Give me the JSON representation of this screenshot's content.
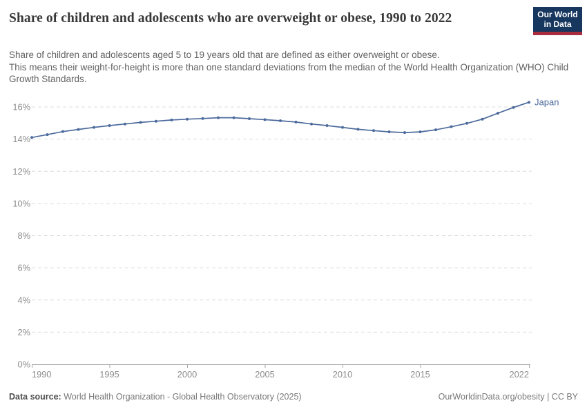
{
  "header": {
    "title": "Share of children and adolescents who are overweight or obese, 1990 to 2022",
    "subtitle_sentence1": "Share of children and adolescents aged 5 to 19 years old that are defined as either overweight or obese.",
    "subtitle_sentence2": "This means their weight-for-height is more than one standard deviations from the median of the World Health Organization (WHO) Child Growth Standards.",
    "logo": {
      "line1": "Our World",
      "line2": "in Data",
      "bg_color": "#18375f",
      "stripe_color": "#a92c3f"
    }
  },
  "chart_data": {
    "type": "line",
    "title": "Share of children and adolescents who are overweight or obese, 1990 to 2022",
    "x": [
      1990,
      1991,
      1992,
      1993,
      1994,
      1995,
      1996,
      1997,
      1998,
      1999,
      2000,
      2001,
      2002,
      2003,
      2004,
      2005,
      2006,
      2007,
      2008,
      2009,
      2010,
      2011,
      2012,
      2013,
      2014,
      2015,
      2016,
      2017,
      2018,
      2019,
      2020,
      2021,
      2022
    ],
    "series": [
      {
        "name": "Japan",
        "color": "#4c6a9c",
        "values": [
          14.1,
          14.28,
          14.47,
          14.6,
          14.73,
          14.84,
          14.94,
          15.04,
          15.11,
          15.19,
          15.24,
          15.28,
          15.33,
          15.33,
          15.27,
          15.21,
          15.14,
          15.06,
          14.94,
          14.84,
          14.73,
          14.61,
          14.53,
          14.45,
          14.41,
          14.45,
          14.58,
          14.77,
          14.98,
          15.24,
          15.61,
          15.97,
          16.29
        ]
      }
    ],
    "xlabel": "",
    "ylabel": "",
    "xlim": [
      1990,
      2022
    ],
    "ylim": [
      0,
      16
    ],
    "y_ticks": [
      0,
      2,
      4,
      6,
      8,
      10,
      12,
      14,
      16
    ],
    "y_tick_suffix": "%",
    "x_ticks": [
      1990,
      1995,
      2000,
      2005,
      2010,
      2015,
      2022
    ],
    "grid": "horizontal-dashed",
    "legend_position": "end-of-line-label",
    "colors": {
      "gridline": "#dcdcdc",
      "axis": "#a3a3a3",
      "tick_text": "#8b8b8b"
    }
  },
  "footer": {
    "datasource_label": "Data source:",
    "datasource_text": " World Health Organization - Global Health Observatory (2025)",
    "attribution": "OurWorldinData.org/obesity | CC BY"
  }
}
